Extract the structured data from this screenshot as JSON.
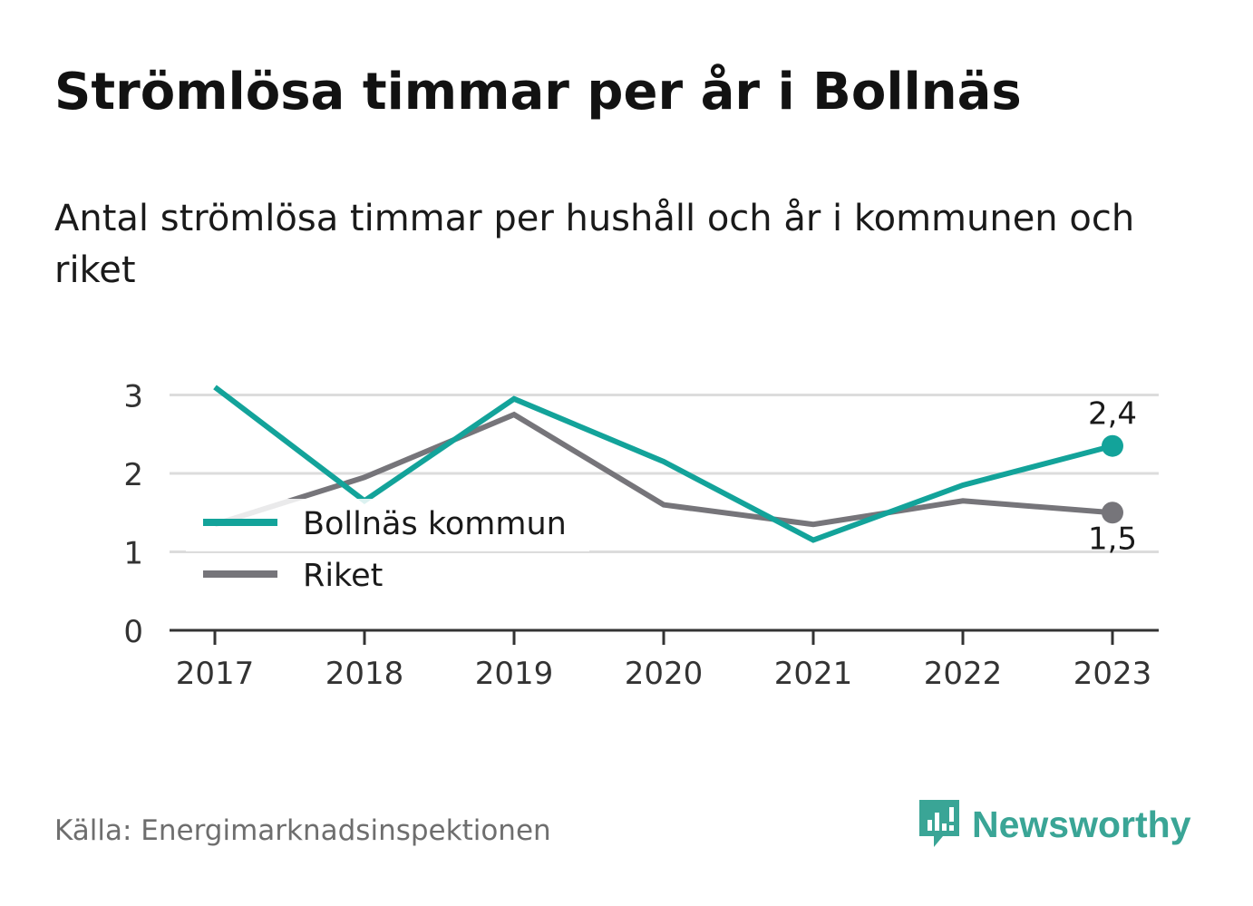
{
  "title": "Strömlösa timmar per år i Bollnäs",
  "subtitle": "Antal strömlösa timmar per hushåll och år i kommunen och riket",
  "source": "Källa: Energimarknadsinspektionen",
  "brand": {
    "name": "Newsworthy",
    "color": "#3aa596"
  },
  "chart_data": {
    "type": "line",
    "x": [
      "2017",
      "2018",
      "2019",
      "2020",
      "2021",
      "2022",
      "2023"
    ],
    "series": [
      {
        "name": "Bollnäs kommun",
        "color": "#13a39a",
        "values": [
          3.1,
          1.65,
          2.95,
          2.15,
          1.15,
          1.85,
          2.35
        ]
      },
      {
        "name": "Riket",
        "color": "#76757a",
        "values": [
          1.35,
          1.95,
          2.75,
          1.6,
          1.35,
          1.65,
          1.5
        ]
      }
    ],
    "yticks": [
      0,
      1,
      2,
      3
    ],
    "ylim": [
      0,
      3.3
    ],
    "end_labels": [
      "2,4",
      "1,5"
    ],
    "grid": true,
    "legend_position": "left"
  }
}
